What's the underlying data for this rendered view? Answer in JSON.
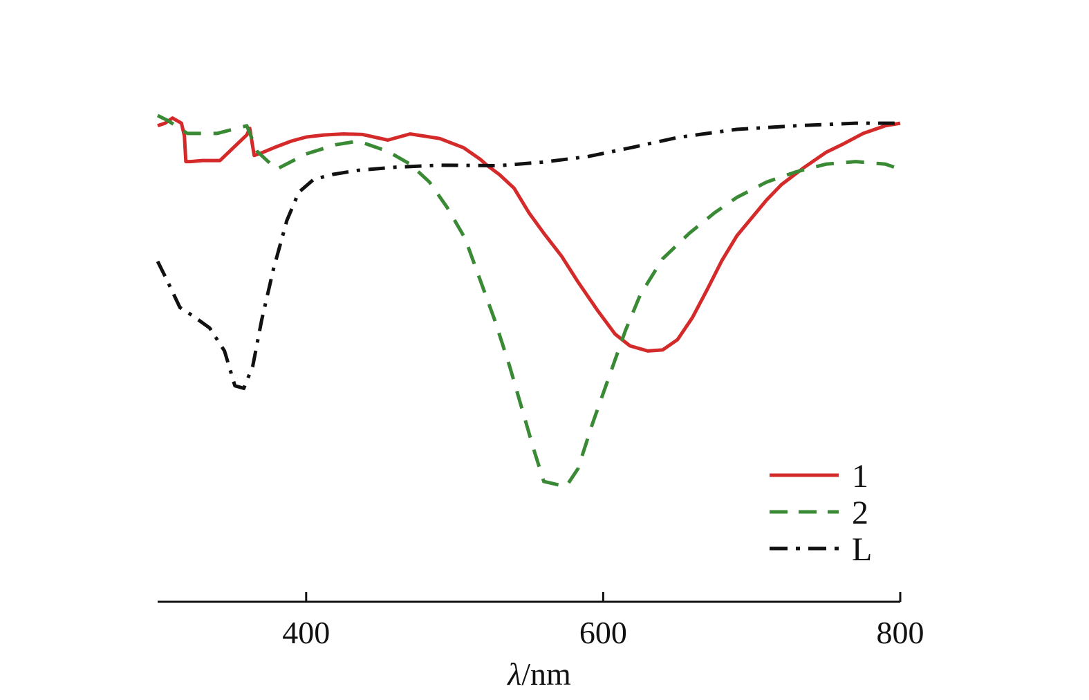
{
  "chart_data": {
    "type": "line",
    "title": "",
    "xlabel_symbol": "λ",
    "xlabel_unit": "/nm",
    "ylabel": "",
    "xlim": [
      300,
      800
    ],
    "ylim": [
      0,
      1
    ],
    "x_ticks": [
      400,
      600,
      800
    ],
    "x_tick_labels": [
      "400",
      "600",
      "800"
    ],
    "grid": false,
    "legend_position": "bottom-right",
    "series": [
      {
        "name": "1",
        "color": "#d42a2a",
        "style": "solid",
        "points": [
          [
            300,
            0.93
          ],
          [
            305,
            0.935
          ],
          [
            310,
            0.945
          ],
          [
            316,
            0.935
          ],
          [
            318,
            0.91
          ],
          [
            319,
            0.86
          ],
          [
            322,
            0.86
          ],
          [
            330,
            0.862
          ],
          [
            342,
            0.862
          ],
          [
            352,
            0.89
          ],
          [
            360,
            0.912
          ],
          [
            362,
            0.925
          ],
          [
            365,
            0.872
          ],
          [
            370,
            0.877
          ],
          [
            380,
            0.889
          ],
          [
            390,
            0.9
          ],
          [
            400,
            0.908
          ],
          [
            412,
            0.912
          ],
          [
            425,
            0.914
          ],
          [
            438,
            0.913
          ],
          [
            455,
            0.902
          ],
          [
            470,
            0.914
          ],
          [
            490,
            0.905
          ],
          [
            506,
            0.887
          ],
          [
            517,
            0.865
          ],
          [
            522,
            0.852
          ],
          [
            530,
            0.835
          ],
          [
            540,
            0.808
          ],
          [
            550,
            0.76
          ],
          [
            560,
            0.72
          ],
          [
            572,
            0.675
          ],
          [
            583,
            0.625
          ],
          [
            596,
            0.57
          ],
          [
            608,
            0.523
          ],
          [
            618,
            0.5
          ],
          [
            630,
            0.49
          ],
          [
            640,
            0.492
          ],
          [
            650,
            0.512
          ],
          [
            660,
            0.555
          ],
          [
            670,
            0.61
          ],
          [
            680,
            0.667
          ],
          [
            690,
            0.715
          ],
          [
            700,
            0.75
          ],
          [
            710,
            0.785
          ],
          [
            720,
            0.815
          ],
          [
            735,
            0.848
          ],
          [
            750,
            0.878
          ],
          [
            762,
            0.895
          ],
          [
            775,
            0.915
          ],
          [
            790,
            0.93
          ],
          [
            800,
            0.935
          ]
        ]
      },
      {
        "name": "2",
        "color": "#3a8a35",
        "style": "dashed",
        "points": [
          [
            300,
            0.95
          ],
          [
            307,
            0.94
          ],
          [
            320,
            0.915
          ],
          [
            340,
            0.915
          ],
          [
            360,
            0.93
          ],
          [
            367,
            0.88
          ],
          [
            380,
            0.845
          ],
          [
            400,
            0.875
          ],
          [
            420,
            0.893
          ],
          [
            435,
            0.9
          ],
          [
            455,
            0.88
          ],
          [
            470,
            0.855
          ],
          [
            483,
            0.82
          ],
          [
            495,
            0.77
          ],
          [
            507,
            0.71
          ],
          [
            517,
            0.63
          ],
          [
            527,
            0.55
          ],
          [
            537,
            0.46
          ],
          [
            545,
            0.38
          ],
          [
            553,
            0.3
          ],
          [
            560,
            0.235
          ],
          [
            575,
            0.225
          ],
          [
            583,
            0.26
          ],
          [
            593,
            0.35
          ],
          [
            604,
            0.44
          ],
          [
            615,
            0.53
          ],
          [
            625,
            0.6
          ],
          [
            640,
            0.67
          ],
          [
            658,
            0.72
          ],
          [
            675,
            0.76
          ],
          [
            690,
            0.79
          ],
          [
            710,
            0.82
          ],
          [
            730,
            0.84
          ],
          [
            750,
            0.855
          ],
          [
            770,
            0.86
          ],
          [
            790,
            0.855
          ],
          [
            800,
            0.845
          ]
        ]
      },
      {
        "name": "L",
        "color": "#111111",
        "style": "dashdot",
        "points": [
          [
            300,
            0.665
          ],
          [
            306,
            0.63
          ],
          [
            315,
            0.575
          ],
          [
            323,
            0.56
          ],
          [
            335,
            0.535
          ],
          [
            345,
            0.49
          ],
          [
            352,
            0.422
          ],
          [
            358,
            0.417
          ],
          [
            364,
            0.46
          ],
          [
            370,
            0.55
          ],
          [
            378,
            0.65
          ],
          [
            387,
            0.745
          ],
          [
            395,
            0.8
          ],
          [
            405,
            0.825
          ],
          [
            418,
            0.835
          ],
          [
            435,
            0.843
          ],
          [
            460,
            0.849
          ],
          [
            490,
            0.853
          ],
          [
            530,
            0.852
          ],
          [
            560,
            0.859
          ],
          [
            590,
            0.87
          ],
          [
            620,
            0.888
          ],
          [
            650,
            0.907
          ],
          [
            690,
            0.923
          ],
          [
            730,
            0.93
          ],
          [
            770,
            0.935
          ],
          [
            800,
            0.935
          ]
        ]
      }
    ]
  }
}
